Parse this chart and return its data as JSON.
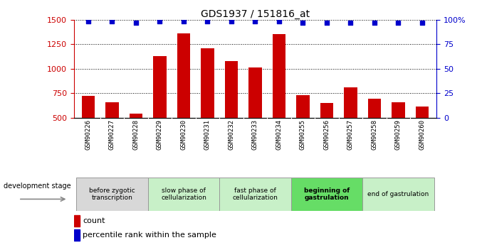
{
  "title": "GDS1937 / 151816_at",
  "categories": [
    "GSM90226",
    "GSM90227",
    "GSM90228",
    "GSM90229",
    "GSM90230",
    "GSM90231",
    "GSM90232",
    "GSM90233",
    "GSM90234",
    "GSM90255",
    "GSM90256",
    "GSM90257",
    "GSM90258",
    "GSM90259",
    "GSM90260"
  ],
  "counts": [
    720,
    660,
    540,
    1130,
    1360,
    1210,
    1080,
    1010,
    1355,
    730,
    650,
    810,
    690,
    655,
    610
  ],
  "percentiles": [
    98,
    98,
    97,
    98,
    98,
    98,
    98,
    98,
    98,
    97,
    97,
    97,
    97,
    97,
    97
  ],
  "bar_color": "#cc0000",
  "dot_color": "#0000cc",
  "ylim_left": [
    500,
    1500
  ],
  "ylim_right": [
    0,
    100
  ],
  "yticks_left": [
    500,
    750,
    1000,
    1250,
    1500
  ],
  "yticks_right": [
    0,
    25,
    50,
    75,
    100
  ],
  "stages": [
    {
      "label": "before zygotic\ntranscription",
      "start": 0,
      "end": 3,
      "color": "#d8d8d8",
      "bold": false
    },
    {
      "label": "slow phase of\ncellularization",
      "start": 3,
      "end": 6,
      "color": "#c8f0c8",
      "bold": false
    },
    {
      "label": "fast phase of\ncellularization",
      "start": 6,
      "end": 9,
      "color": "#c8f0c8",
      "bold": false
    },
    {
      "label": "beginning of\ngastrulation",
      "start": 9,
      "end": 12,
      "color": "#66dd66",
      "bold": true
    },
    {
      "label": "end of gastrulation",
      "start": 12,
      "end": 15,
      "color": "#c8f0c8",
      "bold": false
    }
  ],
  "dev_stage_label": "development stage",
  "legend_count_label": "count",
  "legend_pct_label": "percentile rank within the sample"
}
